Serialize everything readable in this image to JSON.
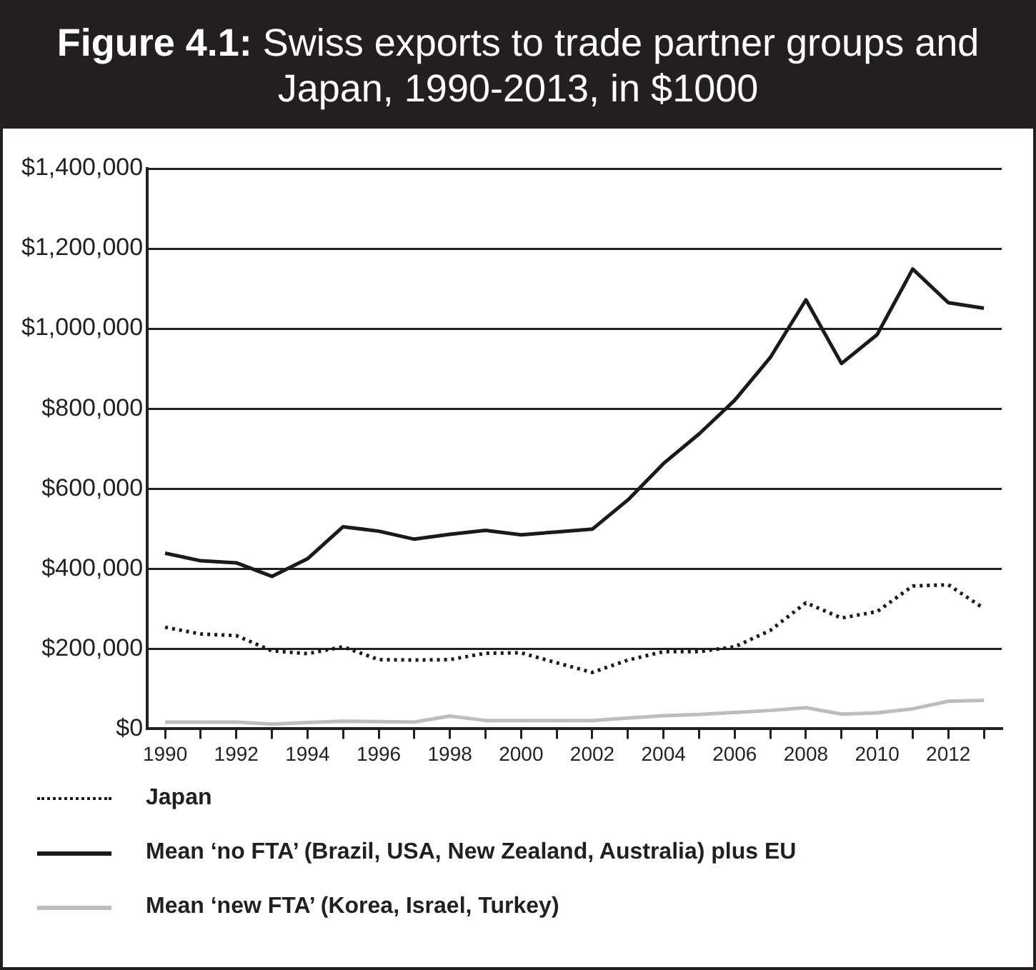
{
  "chart_data": {
    "type": "line",
    "title": "Figure 4.1: Swiss exports to trade partner groups and Japan, 1990-2013, in $1000",
    "x": [
      1990,
      1991,
      1992,
      1993,
      1994,
      1995,
      1996,
      1997,
      1998,
      1999,
      2000,
      2001,
      2002,
      2003,
      2004,
      2005,
      2006,
      2007,
      2008,
      2009,
      2010,
      2011,
      2012,
      2013
    ],
    "series": [
      {
        "name": "Japan",
        "color": "#1a1a1a",
        "line_style": "dotted",
        "values": [
          254000,
          237000,
          233000,
          195000,
          188000,
          205000,
          173000,
          172000,
          173000,
          189000,
          190000,
          165000,
          141000,
          172000,
          193000,
          193000,
          205000,
          246000,
          315000,
          277000,
          293000,
          357000,
          360000,
          301000
        ]
      },
      {
        "name": "Mean ‘no FTA’ (Brazil, USA, New Zealand, Australia) plus EU",
        "color": "#1a1a1a",
        "line_style": "solid",
        "values": [
          439000,
          420000,
          415000,
          381000,
          425000,
          505000,
          494000,
          474000,
          486000,
          496000,
          485000,
          492000,
          499000,
          572000,
          663000,
          737000,
          821000,
          928000,
          1072000,
          913000,
          985000,
          1149000,
          1065000,
          1051000
        ]
      },
      {
        "name": "Mean ‘new FTA’ (Korea, Israel, Turkey)",
        "color": "#bdbdbd",
        "line_style": "solid",
        "values": [
          17000,
          17000,
          17000,
          12000,
          16000,
          19000,
          18000,
          17000,
          32000,
          21000,
          21000,
          21000,
          21000,
          27000,
          33000,
          36000,
          41000,
          46000,
          53000,
          37000,
          40000,
          50000,
          69000,
          71000
        ]
      }
    ],
    "xlim": [
      1989.5,
      2013.5
    ],
    "xticks": [
      1990,
      {
        "value": 1991,
        "label": null
      },
      1992,
      {
        "value": 1993,
        "label": null
      },
      1994,
      {
        "value": 1995,
        "label": null
      },
      1996,
      {
        "value": 1997,
        "label": null
      },
      1998,
      {
        "value": 1999,
        "label": null
      },
      2000,
      {
        "value": 2001,
        "label": null
      },
      2002,
      {
        "value": 2003,
        "label": null
      },
      2004,
      {
        "value": 2005,
        "label": null
      },
      2006,
      {
        "value": 2007,
        "label": null
      },
      2008,
      {
        "value": 2009,
        "label": null
      },
      2010,
      {
        "value": 2011,
        "label": null
      },
      2012,
      {
        "value": 2013,
        "label": null
      }
    ],
    "ylim": [
      0,
      1400000
    ],
    "yticks": [
      {
        "value": 0,
        "label": "$0"
      },
      {
        "value": 200000,
        "label": "$200,000"
      },
      {
        "value": 400000,
        "label": "$400,000"
      },
      {
        "value": 600000,
        "label": "$600,000"
      },
      {
        "value": 800000,
        "label": "$800,000"
      },
      {
        "value": 1000000,
        "label": "$1,000,000"
      },
      {
        "value": 1200000,
        "label": "$1,200,000"
      },
      {
        "value": 1400000,
        "label": "$1,400,000"
      }
    ],
    "grid": "y",
    "legend": "bottom",
    "marker": "none"
  }
}
